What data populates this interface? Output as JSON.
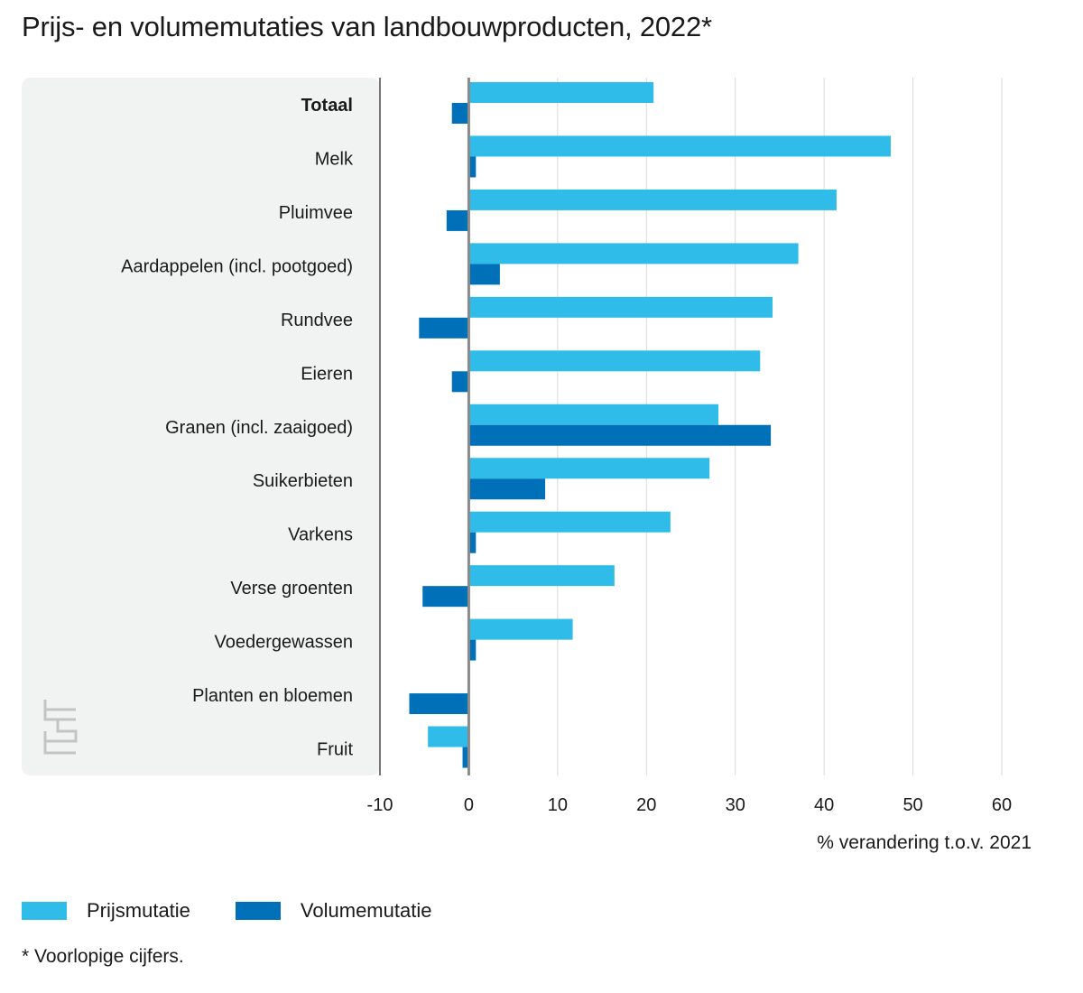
{
  "chart_data": {
    "type": "bar",
    "orientation": "horizontal",
    "title": "Prijs- en volumemutaties van landbouwproducten, 2022*",
    "categories": [
      "Totaal",
      "Melk",
      "Pluimvee",
      "Aardappelen (incl. pootgoed)",
      "Rundvee",
      "Eieren",
      "Granen (incl. zaaigoed)",
      "Suikerbieten",
      "Varkens",
      "Verse groenten",
      "Voedergewassen",
      "Planten en bloemen",
      "Fruit"
    ],
    "bold_categories": [
      "Totaal"
    ],
    "series": [
      {
        "name": "Prijsmutatie",
        "color": "#2fbce9",
        "values": [
          20.8,
          47.5,
          41.4,
          37.1,
          34.2,
          32.8,
          28.1,
          27.1,
          22.7,
          16.4,
          11.7,
          0,
          -4.6
        ]
      },
      {
        "name": "Volumemutatie",
        "color": "#0071b9",
        "values": [
          -1.9,
          0.8,
          -2.5,
          3.5,
          -5.6,
          -1.9,
          34.0,
          8.6,
          0.8,
          -5.2,
          0.8,
          -6.7,
          -0.7
        ]
      }
    ],
    "xlim": [
      -10,
      60
    ],
    "xticks": [
      -10,
      0,
      10,
      20,
      30,
      40,
      50,
      60
    ],
    "xticklabels": [
      "-10",
      "0",
      "10",
      "20",
      "30",
      "40",
      "50",
      "60"
    ],
    "xlabel": "% verandering t.o.v. 2021",
    "ylabel": "",
    "grid": true,
    "legend_position": "bottom-left"
  },
  "legend": {
    "price_label": "Prijsmutatie",
    "volume_label": "Volumemutatie",
    "price_color": "#2fbce9",
    "volume_color": "#0071b9"
  },
  "footnote": "* Voorlopige cijfers.",
  "logo": {
    "text": "cbs",
    "icon": "cbs-logo-icon"
  }
}
